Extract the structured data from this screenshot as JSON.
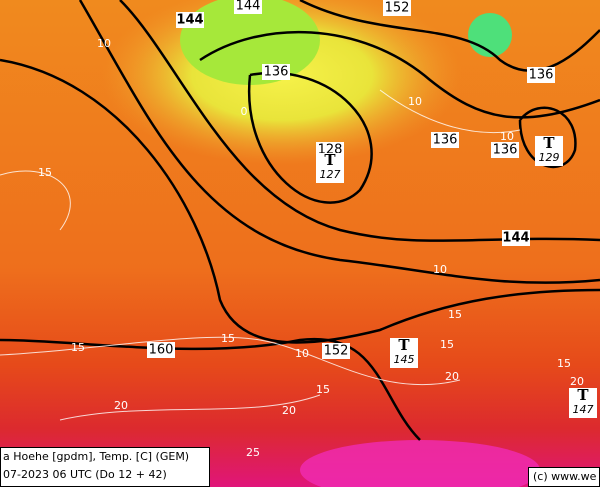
{
  "map": {
    "height_labels": [
      144,
      144,
      152,
      136,
      136,
      136,
      136,
      144,
      160,
      152,
      128
    ],
    "temp_labels": [
      10,
      0,
      10,
      10,
      15,
      10,
      15,
      15,
      10,
      15,
      15,
      20,
      15,
      20,
      20,
      15,
      20,
      25
    ],
    "lows": [
      {
        "symbol": "T",
        "value": 127
      },
      {
        "symbol": "T",
        "value": 129
      },
      {
        "symbol": "T",
        "value": 145
      },
      {
        "symbol": "T",
        "value": 147
      }
    ],
    "caption": {
      "line1": "a Hoehe [gpdm], Temp. [C] (GEM)",
      "line2": "07-2023 06 UTC (Do 12 + 42)"
    },
    "copyright": "(c) www.we"
  }
}
